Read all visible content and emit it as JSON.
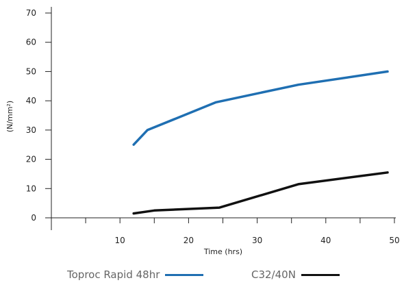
{
  "chart_data": {
    "type": "line",
    "title": "",
    "xlabel": "Time (hrs)",
    "ylabel": "(N/mm²)",
    "xlim": [
      0,
      50
    ],
    "ylim": [
      0,
      70
    ],
    "x_ticks": [
      10,
      20,
      30,
      40,
      50
    ],
    "y_ticks": [
      0,
      10,
      20,
      30,
      40,
      50,
      60,
      70
    ],
    "grid": false,
    "legend_position": "bottom",
    "series": [
      {
        "name": "Toproc Rapid 48hr",
        "color": "#1f6fb2",
        "x": [
          12,
          14,
          24,
          36,
          49
        ],
        "y": [
          25,
          30,
          39.5,
          45.5,
          50
        ]
      },
      {
        "name": "C32/40N",
        "color": "#111111",
        "x": [
          12,
          15,
          24.5,
          36,
          49
        ],
        "y": [
          1.5,
          2.5,
          3.5,
          11.5,
          15.5
        ]
      }
    ]
  }
}
